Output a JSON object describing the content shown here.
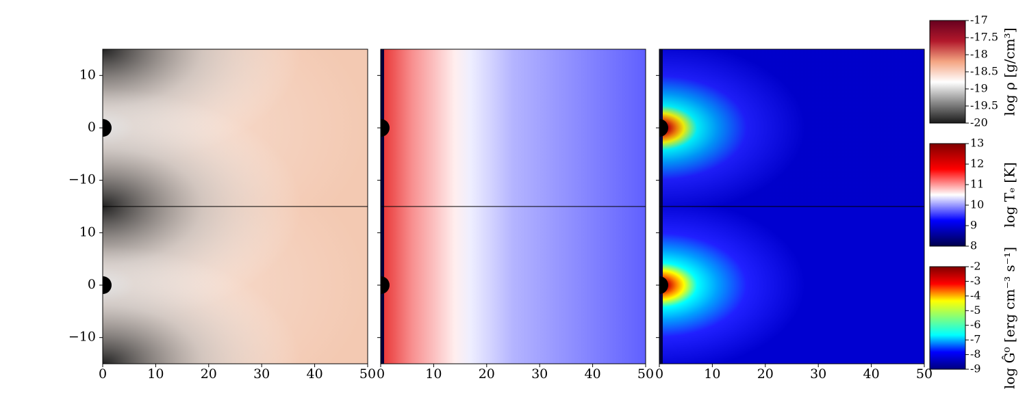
{
  "chart_data": {
    "type": "heatmap",
    "xlim": [
      0,
      50
    ],
    "xticks": [
      0,
      10,
      20,
      30,
      40,
      50
    ],
    "ylim": [
      -15,
      15
    ],
    "yticks": [
      {
        "value": -10,
        "label": "−10"
      },
      0,
      10
    ],
    "colorbars": [
      {
        "label": "log ρ [g/cm³]",
        "lim": [
          -20,
          -17
        ],
        "ticks": [
          -20,
          -19.5,
          -19,
          -18.5,
          -18,
          -17.5,
          -17
        ],
        "colors": [
          "#1a1a1a",
          "#8a8a8a",
          "#ffffff",
          "#f4a582",
          "#b2182b",
          "#67001f"
        ]
      },
      {
        "label": "log Tₑ [K]",
        "lim": [
          8,
          13
        ],
        "ticks": [
          8,
          9,
          10,
          11,
          12,
          13
        ],
        "colors": [
          "#00004c",
          "#0000ff",
          "#ffffff",
          "#ff0000",
          "#800000"
        ]
      },
      {
        "label": "log Ĝ⁰ [erg cm⁻³ s⁻¹]",
        "lim": [
          -9,
          -2
        ],
        "ticks": [
          -9,
          -8,
          -7,
          -6,
          -5,
          -4,
          -3,
          -2
        ],
        "colors": [
          "#00007f",
          "#0000ff",
          "#00ffff",
          "#7fff7f",
          "#ffff00",
          "#ff0000",
          "#7f0000"
        ]
      }
    ]
  }
}
